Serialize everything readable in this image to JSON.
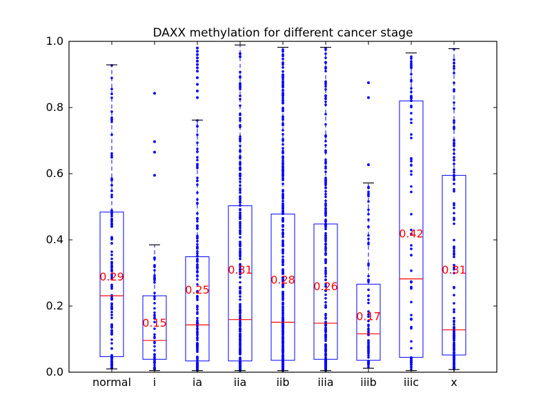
{
  "chart_data": {
    "type": "box",
    "title": "DAXX methylation for different cancer stage",
    "xlabel": "",
    "ylabel": "",
    "ylim": [
      0.0,
      1.0
    ],
    "yticks": [
      "0.0",
      "0.2",
      "0.4",
      "0.6",
      "0.8",
      "1.0"
    ],
    "grid": false,
    "legend": "none",
    "colors": {
      "box": "#0000ff",
      "median": "#ff0000",
      "mean_label": "#ff0000",
      "whisker": "#0000ff",
      "cap": "#000000",
      "points": "#0000ff",
      "axes": "#000000"
    },
    "categories": [
      "normal",
      "i",
      "ia",
      "iia",
      "iib",
      "iiia",
      "iiib",
      "iiic",
      "x"
    ],
    "boxes": [
      {
        "category": "normal",
        "q1": 0.047,
        "median": 0.231,
        "q3": 0.484,
        "whisker_low": 0.01,
        "whisker_high": 0.929,
        "mean_label": "0.29",
        "mean": 0.29,
        "points": 140,
        "outliers": []
      },
      {
        "category": "i",
        "q1": 0.039,
        "median": 0.096,
        "q3": 0.231,
        "whisker_low": 0.005,
        "whisker_high": 0.385,
        "mean_label": "0.15",
        "mean": 0.15,
        "points": 55,
        "outliers": [
          0.843,
          0.697,
          0.665,
          0.595
        ]
      },
      {
        "category": "ia",
        "q1": 0.034,
        "median": 0.143,
        "q3": 0.349,
        "whisker_low": 0.005,
        "whisker_high": 0.762,
        "mean_label": "0.25",
        "mean": 0.25,
        "points": 150,
        "outliers": [
          0.98,
          0.97,
          0.96,
          0.95,
          0.94,
          0.93,
          0.92,
          0.91,
          0.89,
          0.87,
          0.85,
          0.83
        ]
      },
      {
        "category": "iia",
        "q1": 0.034,
        "median": 0.159,
        "q3": 0.503,
        "whisker_low": 0.005,
        "whisker_high": 0.989,
        "mean_label": "0.31",
        "mean": 0.31,
        "points": 260,
        "outliers": []
      },
      {
        "category": "iib",
        "q1": 0.036,
        "median": 0.151,
        "q3": 0.478,
        "whisker_low": 0.005,
        "whisker_high": 0.982,
        "mean_label": "0.28",
        "mean": 0.28,
        "points": 420,
        "outliers": []
      },
      {
        "category": "iiia",
        "q1": 0.039,
        "median": 0.148,
        "q3": 0.448,
        "whisker_low": 0.005,
        "whisker_high": 0.982,
        "mean_label": "0.26",
        "mean": 0.26,
        "points": 240,
        "outliers": []
      },
      {
        "category": "iiib",
        "q1": 0.036,
        "median": 0.116,
        "q3": 0.266,
        "whisker_low": 0.012,
        "whisker_high": 0.572,
        "mean_label": "0.17",
        "mean": 0.17,
        "points": 70,
        "outliers": [
          0.875,
          0.83,
          0.627
        ]
      },
      {
        "category": "iiic",
        "q1": 0.045,
        "median": 0.282,
        "q3": 0.82,
        "whisker_low": 0.005,
        "whisker_high": 0.965,
        "mean_label": "0.42",
        "mean": 0.42,
        "points": 80,
        "outliers": []
      },
      {
        "category": "x",
        "q1": 0.052,
        "median": 0.128,
        "q3": 0.595,
        "whisker_low": 0.008,
        "whisker_high": 0.978,
        "mean_label": "0.31",
        "mean": 0.31,
        "points": 150,
        "outliers": []
      }
    ]
  }
}
